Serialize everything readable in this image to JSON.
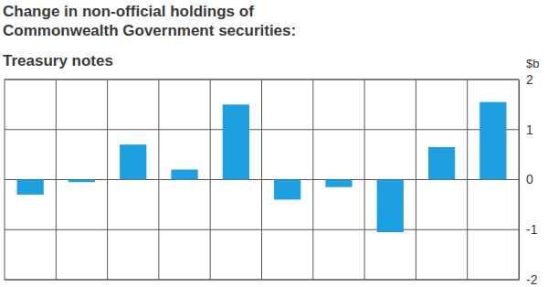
{
  "chart_data": {
    "type": "bar",
    "title": "Change in non-official holdings of Commonwealth Government securities:",
    "subtitle": "Treasury notes",
    "y_label": "$b",
    "categories": [
      null,
      null,
      null,
      null,
      null,
      null,
      null,
      null,
      null,
      null
    ],
    "values": [
      -0.3,
      -0.05,
      0.7,
      0.2,
      1.5,
      -0.4,
      -0.15,
      -1.05,
      0.65,
      1.55
    ],
    "color": "#1ea0e0",
    "ylim": [
      -2,
      2
    ],
    "yticks": [
      -2,
      -1,
      0,
      1,
      2
    ],
    "grid": true
  }
}
